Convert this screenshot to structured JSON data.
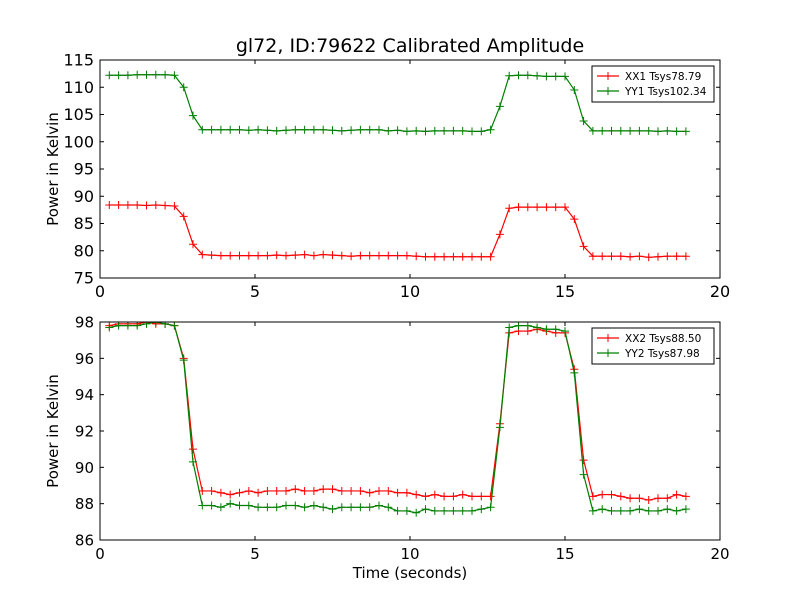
{
  "chart_data": [
    {
      "type": "line",
      "title": "gl72, ID:79622 Calibrated Amplitude",
      "xlabel": "",
      "ylabel": "Power in Kelvin",
      "xlim": [
        0,
        20
      ],
      "ylim": [
        75,
        115
      ],
      "xticks": [
        0,
        5,
        10,
        15,
        20
      ],
      "yticks": [
        75,
        80,
        85,
        90,
        95,
        100,
        105,
        110,
        115
      ],
      "grid": false,
      "legend_position": "top-right",
      "x": [
        0.3,
        0.6,
        0.9,
        1.2,
        1.5,
        1.8,
        2.1,
        2.4,
        2.7,
        3.0,
        3.3,
        3.6,
        3.9,
        4.2,
        4.5,
        4.8,
        5.1,
        5.4,
        5.7,
        6.0,
        6.3,
        6.6,
        6.9,
        7.2,
        7.5,
        7.8,
        8.1,
        8.4,
        8.7,
        9.0,
        9.3,
        9.6,
        9.9,
        10.2,
        10.5,
        10.8,
        11.1,
        11.4,
        11.7,
        12.0,
        12.3,
        12.6,
        12.9,
        13.2,
        13.5,
        13.8,
        14.1,
        14.4,
        14.7,
        15.0,
        15.3,
        15.6,
        15.9,
        16.2,
        16.5,
        16.8,
        17.1,
        17.4,
        17.7,
        18.0,
        18.3,
        18.6,
        18.9
      ],
      "series": [
        {
          "name": "XX1 Tsys78.79",
          "color": "#ff0000",
          "values": [
            88.4,
            88.4,
            88.4,
            88.4,
            88.3,
            88.4,
            88.3,
            88.2,
            86.3,
            81.2,
            79.3,
            79.2,
            79.1,
            79.1,
            79.1,
            79.1,
            79.1,
            79.1,
            79.2,
            79.1,
            79.2,
            79.3,
            79.1,
            79.3,
            79.2,
            79.1,
            79.0,
            79.1,
            79.1,
            79.1,
            79.1,
            79.1,
            79.1,
            79.0,
            78.9,
            78.9,
            78.9,
            78.9,
            78.9,
            78.9,
            78.9,
            78.9,
            83.0,
            87.8,
            88.0,
            88.0,
            88.0,
            88.0,
            88.0,
            88.0,
            85.8,
            80.8,
            79.0,
            79.0,
            79.0,
            79.0,
            78.9,
            79.0,
            78.8,
            78.9,
            79.0,
            79.0,
            79.0
          ]
        },
        {
          "name": "YY1 Tsys102.34",
          "color": "#007f00",
          "values": [
            112.2,
            112.2,
            112.2,
            112.3,
            112.3,
            112.3,
            112.3,
            112.2,
            110.0,
            104.8,
            102.2,
            102.2,
            102.2,
            102.2,
            102.2,
            102.1,
            102.2,
            102.1,
            102.0,
            102.1,
            102.2,
            102.2,
            102.2,
            102.2,
            102.1,
            102.0,
            102.1,
            102.2,
            102.2,
            102.2,
            102.0,
            102.1,
            101.9,
            102.0,
            101.9,
            102.0,
            102.0,
            102.0,
            102.0,
            101.9,
            101.9,
            102.2,
            106.5,
            112.1,
            112.2,
            112.2,
            112.1,
            112.0,
            112.0,
            112.0,
            109.5,
            103.8,
            102.0,
            102.0,
            102.0,
            102.0,
            102.0,
            102.0,
            102.0,
            101.9,
            102.0,
            101.9,
            101.9
          ]
        }
      ]
    },
    {
      "type": "line",
      "title": "",
      "xlabel": "Time (seconds)",
      "ylabel": "Power in Kelvin",
      "xlim": [
        0,
        20
      ],
      "ylim": [
        86,
        98
      ],
      "xticks": [
        0,
        5,
        10,
        15,
        20
      ],
      "yticks": [
        86,
        88,
        90,
        92,
        94,
        96,
        98
      ],
      "grid": false,
      "legend_position": "top-right",
      "x": [
        0.3,
        0.6,
        0.9,
        1.2,
        1.5,
        1.8,
        2.1,
        2.4,
        2.7,
        3.0,
        3.3,
        3.6,
        3.9,
        4.2,
        4.5,
        4.8,
        5.1,
        5.4,
        5.7,
        6.0,
        6.3,
        6.6,
        6.9,
        7.2,
        7.5,
        7.8,
        8.1,
        8.4,
        8.7,
        9.0,
        9.3,
        9.6,
        9.9,
        10.2,
        10.5,
        10.8,
        11.1,
        11.4,
        11.7,
        12.0,
        12.3,
        12.6,
        12.9,
        13.2,
        13.5,
        13.8,
        14.1,
        14.4,
        14.7,
        15.0,
        15.3,
        15.6,
        15.9,
        16.2,
        16.5,
        16.8,
        17.1,
        17.4,
        17.7,
        18.0,
        18.3,
        18.6,
        18.9
      ],
      "series": [
        {
          "name": "XX2 Tsys88.50",
          "color": "#ff0000",
          "values": [
            97.8,
            97.9,
            97.9,
            97.9,
            98.0,
            97.9,
            97.9,
            97.8,
            96.0,
            91.0,
            88.7,
            88.7,
            88.6,
            88.5,
            88.6,
            88.7,
            88.6,
            88.7,
            88.7,
            88.7,
            88.8,
            88.7,
            88.7,
            88.8,
            88.8,
            88.7,
            88.7,
            88.7,
            88.6,
            88.7,
            88.7,
            88.6,
            88.6,
            88.5,
            88.4,
            88.5,
            88.4,
            88.4,
            88.5,
            88.4,
            88.4,
            88.4,
            92.4,
            97.4,
            97.5,
            97.5,
            97.6,
            97.5,
            97.4,
            97.4,
            95.4,
            90.4,
            88.4,
            88.5,
            88.5,
            88.4,
            88.3,
            88.3,
            88.2,
            88.3,
            88.3,
            88.5,
            88.4
          ]
        },
        {
          "name": "YY2 Tsys87.98",
          "color": "#007f00",
          "values": [
            97.7,
            97.8,
            97.8,
            97.8,
            97.9,
            98.0,
            97.9,
            97.8,
            95.9,
            90.3,
            87.9,
            87.9,
            87.8,
            88.0,
            87.9,
            87.9,
            87.8,
            87.8,
            87.8,
            87.9,
            87.9,
            87.8,
            87.9,
            87.8,
            87.7,
            87.8,
            87.8,
            87.8,
            87.8,
            87.9,
            87.8,
            87.6,
            87.6,
            87.5,
            87.7,
            87.6,
            87.6,
            87.6,
            87.6,
            87.6,
            87.7,
            87.8,
            92.2,
            97.7,
            97.8,
            97.8,
            97.7,
            97.6,
            97.6,
            97.5,
            95.2,
            89.6,
            87.6,
            87.7,
            87.6,
            87.6,
            87.6,
            87.7,
            87.6,
            87.6,
            87.7,
            87.6,
            87.7
          ]
        }
      ]
    }
  ]
}
